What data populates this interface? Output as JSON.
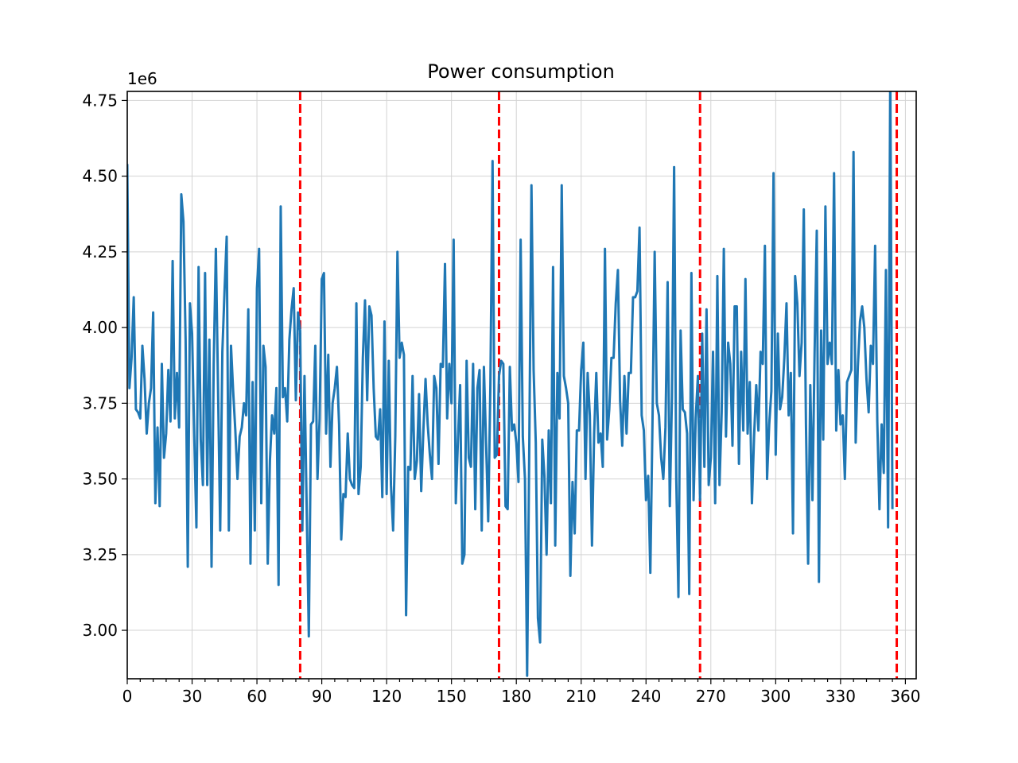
{
  "chart_data": {
    "type": "line",
    "title": "Power consumption",
    "xlabel": "",
    "ylabel": "",
    "y_offset_label": "1e6",
    "xlim": [
      0,
      365
    ],
    "ylim": [
      2840000,
      4780000
    ],
    "x_ticks": [
      0,
      30,
      60,
      90,
      120,
      150,
      180,
      210,
      240,
      270,
      300,
      330,
      360
    ],
    "y_ticks": [
      3.0,
      3.25,
      3.5,
      3.75,
      4.0,
      4.25,
      4.5,
      4.75
    ],
    "y_tick_labels": [
      "3.00",
      "3.25",
      "3.50",
      "3.75",
      "4.00",
      "4.25",
      "4.50",
      "4.75"
    ],
    "grid": true,
    "vertical_lines": [
      80,
      172,
      265,
      356
    ],
    "colors": {
      "series": "#1f77b4",
      "vlines": "#ff0000",
      "grid": "#d3d3d3"
    },
    "series": [
      {
        "name": "",
        "x_start": 0,
        "x_step": 1,
        "values": [
          4540000,
          3800000,
          3900000,
          4100000,
          3730000,
          3720000,
          3700000,
          3940000,
          3830000,
          3650000,
          3750000,
          3800000,
          4050000,
          3420000,
          3670000,
          3410000,
          3880000,
          3570000,
          3650000,
          3860000,
          3690000,
          4220000,
          3700000,
          3850000,
          3670000,
          4440000,
          4350000,
          3960000,
          3210000,
          4080000,
          3980000,
          3640000,
          3340000,
          4200000,
          3630000,
          3480000,
          4180000,
          3480000,
          3960000,
          3210000,
          3880000,
          4260000,
          3800000,
          3330000,
          3920000,
          4120000,
          4300000,
          3330000,
          3940000,
          3790000,
          3660000,
          3500000,
          3640000,
          3670000,
          3750000,
          3710000,
          4060000,
          3220000,
          3820000,
          3330000,
          4130000,
          4260000,
          3420000,
          3940000,
          3870000,
          3220000,
          3560000,
          3710000,
          3650000,
          3800000,
          3150000,
          4400000,
          3770000,
          3800000,
          3690000,
          3960000,
          4060000,
          4130000,
          3760000,
          4050000,
          3990000,
          3330000,
          3840000,
          3410000,
          2980000,
          3680000,
          3690000,
          3940000,
          3500000,
          3700000,
          4160000,
          4180000,
          3650000,
          3910000,
          3540000,
          3750000,
          3800000,
          3870000,
          3680000,
          3300000,
          3450000,
          3440000,
          3650000,
          3500000,
          3480000,
          3470000,
          4080000,
          3450000,
          3540000,
          3900000,
          4090000,
          3760000,
          4070000,
          4040000,
          3800000,
          3640000,
          3630000,
          3730000,
          3440000,
          4020000,
          3450000,
          3890000,
          3480000,
          3330000,
          3640000,
          4250000,
          3900000,
          3950000,
          3910000,
          3050000,
          3540000,
          3530000,
          3840000,
          3500000,
          3560000,
          3780000,
          3460000,
          3660000,
          3830000,
          3680000,
          3580000,
          3500000,
          3840000,
          3800000,
          3550000,
          3880000,
          3870000,
          4210000,
          3700000,
          3880000,
          3750000,
          4290000,
          3420000,
          3630000,
          3810000,
          3220000,
          3250000,
          3890000,
          3570000,
          3540000,
          3880000,
          3400000,
          3800000,
          3860000,
          3330000,
          3870000,
          3620000,
          3360000,
          3810000,
          4550000,
          3570000,
          3580000,
          3840000,
          3890000,
          3880000,
          3410000,
          3400000,
          3870000,
          3660000,
          3680000,
          3620000,
          3490000,
          4290000,
          3640000,
          3500000,
          2850000,
          3610000,
          4470000,
          3860000,
          3620000,
          3040000,
          2960000,
          3630000,
          3510000,
          3250000,
          3660000,
          3420000,
          4200000,
          3280000,
          3850000,
          3700000,
          4470000,
          3840000,
          3800000,
          3750000,
          3180000,
          3490000,
          3320000,
          3660000,
          3660000,
          3860000,
          3950000,
          3500000,
          3850000,
          3710000,
          3280000,
          3650000,
          3850000,
          3620000,
          3650000,
          3540000,
          4260000,
          3630000,
          3730000,
          3900000,
          3900000,
          4080000,
          4190000,
          3760000,
          3610000,
          3840000,
          3650000,
          3850000,
          3850000,
          4100000,
          4100000,
          4120000,
          4330000,
          3710000,
          3660000,
          3430000,
          3510000,
          3190000,
          3690000,
          4250000,
          3750000,
          3710000,
          3570000,
          3500000,
          3670000,
          4150000,
          3410000,
          3770000,
          4530000,
          3500000,
          3110000,
          3990000,
          3730000,
          3720000,
          3650000,
          3120000,
          4180000,
          3430000,
          3700000,
          3840000,
          3430000,
          3980000,
          3540000,
          4060000,
          3480000,
          3570000,
          3920000,
          3420000,
          4170000,
          3480000,
          3720000,
          4260000,
          3640000,
          3950000,
          3880000,
          3610000,
          4070000,
          4070000,
          3550000,
          3920000,
          3660000,
          4160000,
          3650000,
          3820000,
          3420000,
          3640000,
          3810000,
          3660000,
          3920000,
          3880000,
          4270000,
          3500000,
          3680000,
          3790000,
          4510000,
          3580000,
          3980000,
          3730000,
          3770000,
          3900000,
          4080000,
          3710000,
          3850000,
          3320000,
          4170000,
          4080000,
          3840000,
          3950000,
          4390000,
          3680000,
          3220000,
          3810000,
          3430000,
          3920000,
          4320000,
          3160000,
          3990000,
          3630000,
          4400000,
          3880000,
          3950000,
          3880000,
          4510000,
          3660000,
          3860000,
          3680000,
          3710000,
          3500000,
          3820000,
          3840000,
          3860000,
          4580000,
          3620000,
          3870000,
          4020000,
          4070000,
          4000000,
          3830000,
          3720000,
          3940000,
          3880000,
          4270000,
          3690000,
          3400000,
          3680000,
          3520000,
          4190000,
          3340000,
          4850000,
          3400000
        ]
      }
    ]
  }
}
